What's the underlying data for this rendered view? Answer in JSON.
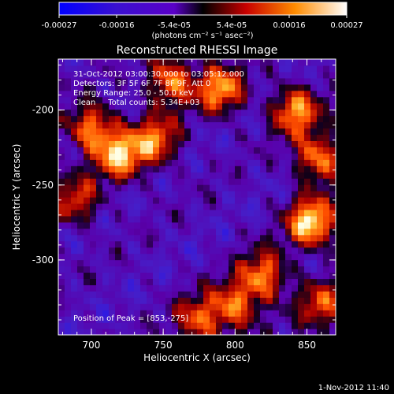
{
  "colorbar": {
    "tick_labels": [
      "-0.00027",
      "-0.00016",
      "-5.4e-05",
      "5.4e-05",
      "0.00016",
      "0.00027"
    ],
    "units_label": "(photons cm⁻² s⁻¹ asec⁻²)"
  },
  "chart_data": {
    "type": "heatmap",
    "title": "Reconstructed RHESSI Image",
    "xlabel": "Heliocentric X (arcsec)",
    "ylabel": "Heliocentric Y (arcsec)",
    "xlim": [
      677,
      870
    ],
    "ylim": [
      -350,
      -166
    ],
    "x_ticks": [
      "700",
      "750",
      "800",
      "850"
    ],
    "y_ticks": [
      "-200",
      "-250",
      "-300"
    ],
    "color_range": [
      -0.00027,
      0.00027
    ],
    "colormap": [
      "#0000ff",
      "#5a00c8",
      "#000000",
      "#c80000",
      "#ff8c00",
      "#ffffff"
    ],
    "bright_sources": [
      {
        "x": 700,
        "y": -212,
        "level": 0.75
      },
      {
        "x": 720,
        "y": -230,
        "level": 0.85
      },
      {
        "x": 745,
        "y": -220,
        "level": 0.7
      },
      {
        "x": 790,
        "y": -186,
        "level": 0.8
      },
      {
        "x": 755,
        "y": -180,
        "level": 0.75
      },
      {
        "x": 842,
        "y": -200,
        "level": 0.8
      },
      {
        "x": 858,
        "y": -232,
        "level": 0.75
      },
      {
        "x": 853,
        "y": -275,
        "level": 1.0
      },
      {
        "x": 820,
        "y": -310,
        "level": 0.75
      },
      {
        "x": 800,
        "y": -330,
        "level": 0.7
      },
      {
        "x": 775,
        "y": -340,
        "level": 0.65
      },
      {
        "x": 860,
        "y": -330,
        "level": 0.6
      },
      {
        "x": 690,
        "y": -260,
        "level": 0.55
      }
    ],
    "annotations": [
      "31-Oct-2012 03:00:30.000 to 03:05:12.000",
      "Detectors: 3F 5F 6F 7F 8F 9F, Att 0",
      "Energy Range: 25.0 - 50.0 keV",
      "Clean     Total counts: 5.34E+03"
    ],
    "peak_label": "Position of Peak = [853,-275]"
  },
  "timestamp": "1-Nov-2012 11:40"
}
